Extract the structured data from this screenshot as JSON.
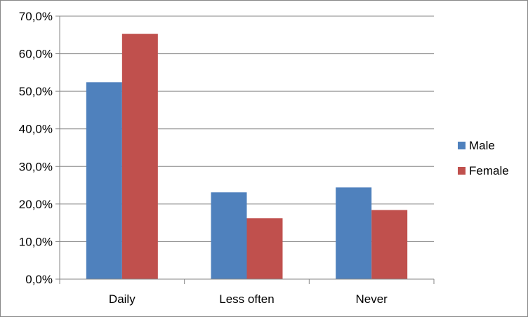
{
  "chart_data": {
    "type": "bar",
    "categories": [
      "Daily",
      "Less often",
      "Never"
    ],
    "series": [
      {
        "name": "Male",
        "values": [
          52.4,
          23.1,
          24.4
        ],
        "color": "#4F81BD"
      },
      {
        "name": "Female",
        "values": [
          65.3,
          16.2,
          18.4
        ],
        "color": "#C0504D"
      }
    ],
    "ylim": [
      0,
      70
    ],
    "yticks": [
      0,
      10,
      20,
      30,
      40,
      50,
      60,
      70
    ],
    "ytick_labels": [
      "0,0%",
      "10,0%",
      "20,0%",
      "30,0%",
      "40,0%",
      "50,0%",
      "60,0%",
      "70,0%"
    ],
    "grid": true,
    "legend_position": "right"
  }
}
